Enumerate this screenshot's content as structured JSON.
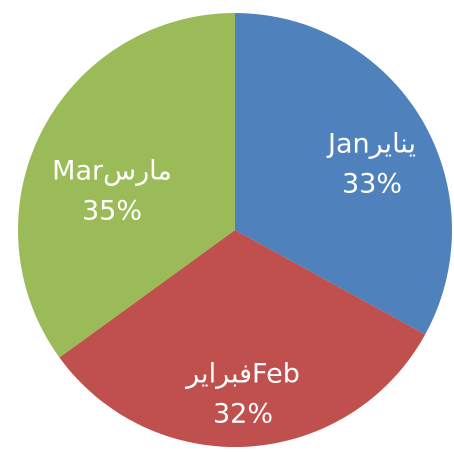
{
  "chart_data": {
    "type": "pie",
    "categories": [
      "Janيناير",
      "فبرايرFeb",
      "Marمارس"
    ],
    "values": [
      33,
      32,
      35
    ],
    "value_labels": [
      "33%",
      "32%",
      "35%"
    ],
    "colors": [
      "#4f81bd",
      "#c0504d",
      "#9bbb59"
    ]
  }
}
